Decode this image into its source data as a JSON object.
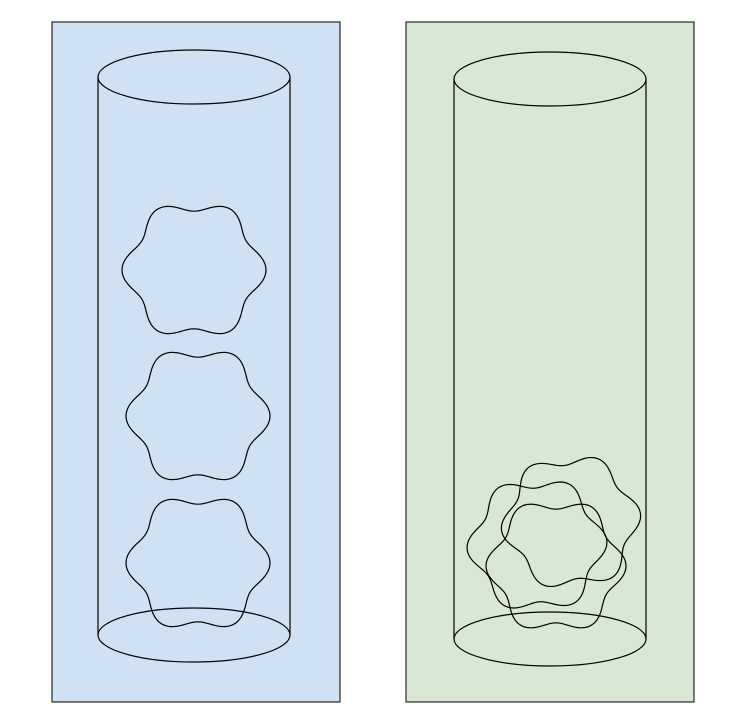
{
  "panels": [
    {
      "id": "left",
      "background": "#cfe1f3",
      "shape_count": 3,
      "arrangement": "stacked-separated"
    },
    {
      "id": "right",
      "background": "#d8e8d4",
      "shape_count": 3,
      "arrangement": "clustered-overlapping"
    }
  ],
  "colors": {
    "stroke": "#000000",
    "panel_border": "#000000"
  }
}
